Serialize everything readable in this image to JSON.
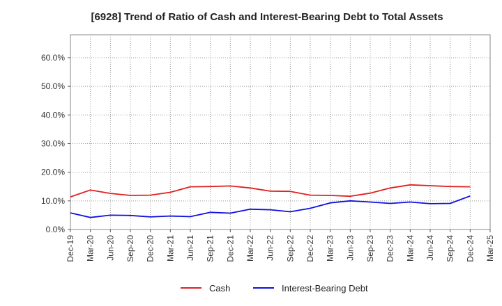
{
  "chart_data": {
    "type": "line",
    "title": "[6928]  Trend of Ratio of Cash and Interest-Bearing Debt to Total Assets",
    "xlabel": "",
    "ylabel": "",
    "categories": [
      "Dec-19",
      "Mar-20",
      "Jun-20",
      "Sep-20",
      "Dec-20",
      "Mar-21",
      "Jun-21",
      "Sep-21",
      "Dec-21",
      "Mar-22",
      "Jun-22",
      "Sep-22",
      "Dec-22",
      "Mar-23",
      "Jun-23",
      "Sep-23",
      "Dec-23",
      "Mar-24",
      "Jun-24",
      "Sep-24",
      "Dec-24",
      "Mar-25"
    ],
    "y_ticks": [
      "0.0%",
      "10.0%",
      "20.0%",
      "30.0%",
      "40.0%",
      "50.0%",
      "60.0%"
    ],
    "ylim": [
      0,
      68
    ],
    "grid": true,
    "legend_position": "bottom",
    "series": [
      {
        "name": "Cash",
        "color": "#e02020",
        "values": [
          11.4,
          13.8,
          12.6,
          11.9,
          12.0,
          13.0,
          14.9,
          15.0,
          15.2,
          14.5,
          13.4,
          13.3,
          12.0,
          11.9,
          11.6,
          12.7,
          14.5,
          15.6,
          15.3,
          15.0,
          14.9,
          null
        ]
      },
      {
        "name": "Interest-Bearing Debt",
        "color": "#1010e0",
        "values": [
          5.8,
          4.2,
          5.0,
          4.9,
          4.4,
          4.7,
          4.5,
          6.0,
          5.7,
          7.1,
          6.9,
          6.2,
          7.4,
          9.3,
          10.0,
          9.6,
          9.1,
          9.6,
          9.0,
          9.1,
          11.7,
          null
        ]
      }
    ]
  }
}
